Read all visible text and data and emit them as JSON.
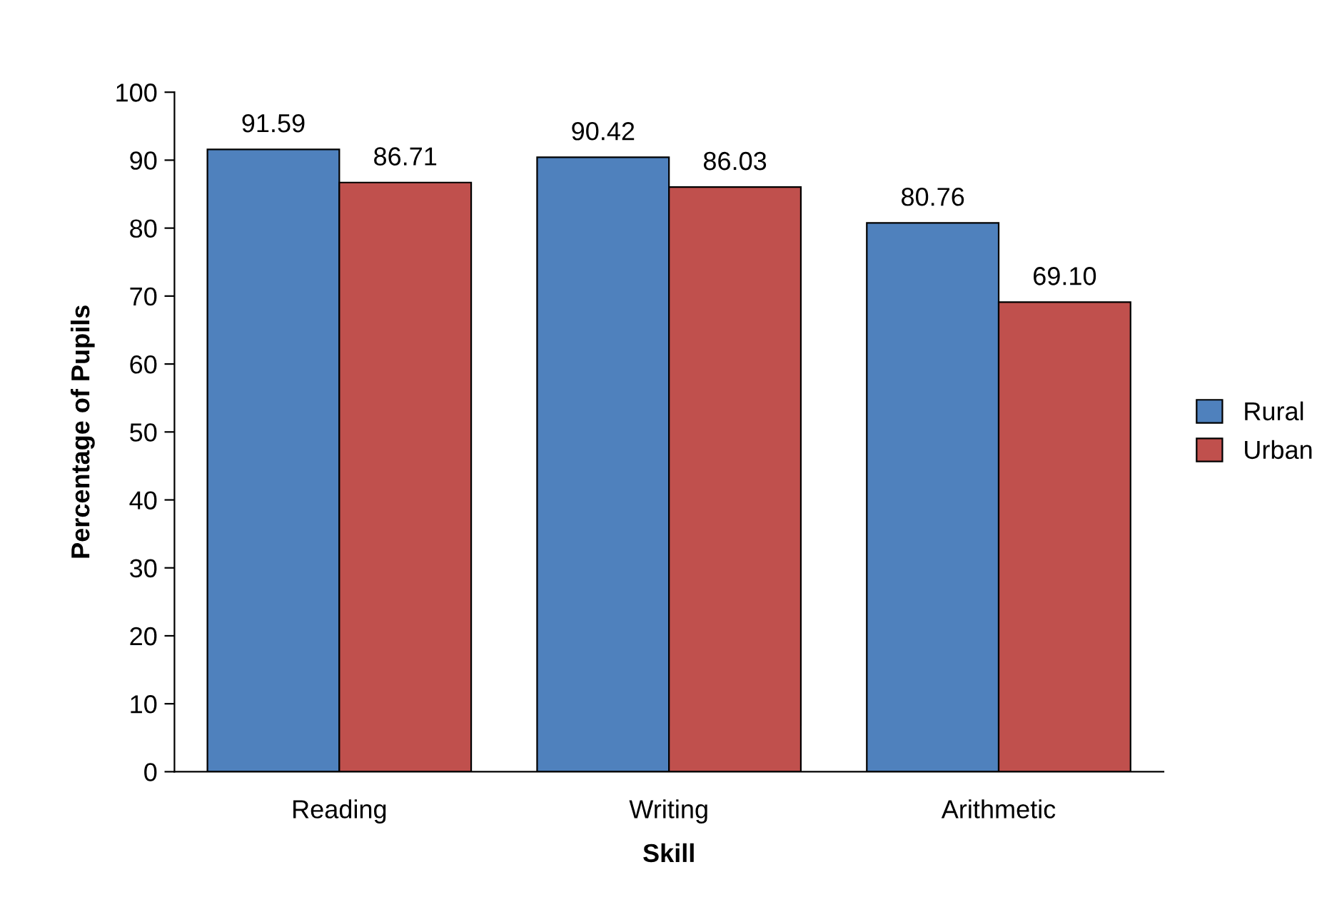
{
  "chart_data": {
    "type": "bar",
    "xlabel": "Skill",
    "ylabel": "Percentage of Pupils",
    "categories": [
      "Reading",
      "Writing",
      "Arithmetic"
    ],
    "series": [
      {
        "name": "Rural",
        "color": "#4f81bd",
        "values": [
          91.59,
          90.42,
          80.76
        ],
        "value_labels": [
          "91.59",
          "90.42",
          "80.76"
        ]
      },
      {
        "name": "Urban",
        "color": "#c0504d",
        "values": [
          86.71,
          86.03,
          69.1
        ],
        "value_labels": [
          "86.71",
          "86.03",
          "69.10"
        ]
      }
    ],
    "ylim": [
      0,
      100
    ],
    "yticks": [
      0,
      10,
      20,
      30,
      40,
      50,
      60,
      70,
      80,
      90,
      100
    ],
    "grid": false,
    "legend": "right"
  }
}
